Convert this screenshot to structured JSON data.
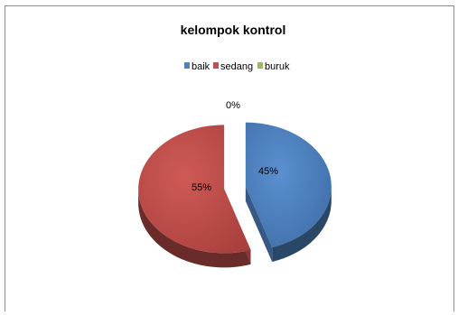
{
  "chart_data": {
    "type": "pie",
    "title": "kelompok kontrol",
    "legend_position": "top",
    "categories": [
      "baik",
      "sedang",
      "buruk"
    ],
    "values": [
      45,
      55,
      0
    ],
    "data_labels": [
      "45%",
      "55%",
      "0%"
    ],
    "colors": {
      "baik": "#4f81bd",
      "sedang": "#c0504d",
      "buruk": "#9bbb59"
    },
    "exploded": true,
    "three_d": true
  }
}
